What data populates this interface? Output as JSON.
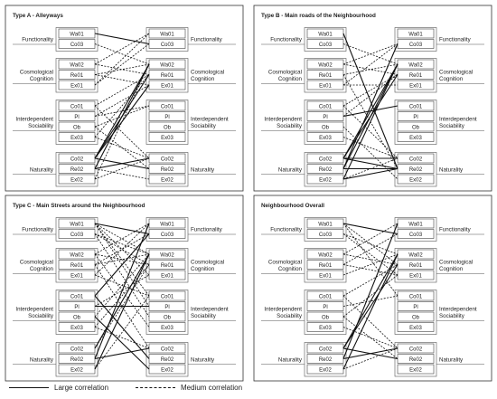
{
  "panels": [
    {
      "title": "Type A - Alleyways"
    },
    {
      "title": "Type B - Main roads of the Neighbourhood"
    },
    {
      "title": "Type C - Main Streets around the Neighbourhood"
    },
    {
      "title": "Neighbourhood Overall"
    }
  ],
  "groups": [
    {
      "label": [
        "Functionality"
      ],
      "items": [
        "Wa01",
        "Co03"
      ]
    },
    {
      "label": [
        "Cosmological",
        "Cognition"
      ],
      "items": [
        "Wa02",
        "Re01",
        "Ex01"
      ]
    },
    {
      "label": [
        "Interdependent",
        "Sociability"
      ],
      "items": [
        "Co01",
        "Pl",
        "Ob",
        "Ex03"
      ]
    },
    {
      "label": [
        "Naturality"
      ],
      "items": [
        "Co02",
        "Re02",
        "Ex02"
      ]
    }
  ],
  "links": [
    [
      [
        "Wa01",
        "Co03",
        "L"
      ],
      [
        "Co03",
        "Wa02",
        "M"
      ],
      [
        "Wa02",
        "Wa01",
        "M"
      ],
      [
        "Wa02",
        "Re01",
        "M"
      ],
      [
        "Re01",
        "Wa02",
        "M"
      ],
      [
        "Ex01",
        "Wa01",
        "M"
      ],
      [
        "Ex01",
        "Co03",
        "M"
      ],
      [
        "Re01",
        "Ex01",
        "M"
      ],
      [
        "Co01",
        "Co02",
        "M"
      ],
      [
        "Co01",
        "Re01",
        "M"
      ],
      [
        "Pl",
        "Ex01",
        "M"
      ],
      [
        "Pl",
        "Co01",
        "M"
      ],
      [
        "Ob",
        "Re02",
        "M"
      ],
      [
        "Ob",
        "Co01",
        "M"
      ],
      [
        "Ex03",
        "Re01",
        "M"
      ],
      [
        "Ex03",
        "Co02",
        "M"
      ],
      [
        "Co02",
        "Wa02",
        "L"
      ],
      [
        "Co02",
        "Re01",
        "L"
      ],
      [
        "Co02",
        "Ex01",
        "L"
      ],
      [
        "Co02",
        "Re02",
        "L"
      ],
      [
        "Re02",
        "Wa02",
        "L"
      ],
      [
        "Re02",
        "Co02",
        "L"
      ],
      [
        "Re02",
        "Ex02",
        "M"
      ],
      [
        "Ex02",
        "Wa02",
        "M"
      ],
      [
        "Ex02",
        "Co02",
        "M"
      ]
    ],
    [
      [
        "Wa01",
        "Re02",
        "L"
      ],
      [
        "Co03",
        "Wa02",
        "M"
      ],
      [
        "Wa02",
        "Re01",
        "M"
      ],
      [
        "Wa02",
        "Co03",
        "M"
      ],
      [
        "Re01",
        "Wa02",
        "M"
      ],
      [
        "Re01",
        "Re02",
        "M"
      ],
      [
        "Ex01",
        "Co03",
        "M"
      ],
      [
        "Ex01",
        "Ex01",
        "M"
      ],
      [
        "Co01",
        "Re01",
        "M"
      ],
      [
        "Co01",
        "Co02",
        "M"
      ],
      [
        "Pl",
        "Co01",
        "L"
      ],
      [
        "Pl",
        "Re01",
        "M"
      ],
      [
        "Ob",
        "Ex02",
        "M"
      ],
      [
        "Ex03",
        "Co02",
        "M"
      ],
      [
        "Co02",
        "Wa02",
        "L"
      ],
      [
        "Co02",
        "Re01",
        "L"
      ],
      [
        "Co02",
        "Co02",
        "L"
      ],
      [
        "Co02",
        "Re02",
        "L"
      ],
      [
        "Re02",
        "Wa02",
        "L"
      ],
      [
        "Re02",
        "Co03",
        "L"
      ],
      [
        "Re02",
        "Re02",
        "L"
      ],
      [
        "Ex02",
        "Wa02",
        "L"
      ],
      [
        "Ex02",
        "Re02",
        "L"
      ],
      [
        "Ex02",
        "Co02",
        "M"
      ]
    ],
    [
      [
        "Wa01",
        "Co03",
        "L"
      ],
      [
        "Wa01",
        "Wa02",
        "M"
      ],
      [
        "Wa01",
        "Ex01",
        "M"
      ],
      [
        "Wa01",
        "Pl",
        "M"
      ],
      [
        "Wa01",
        "Co01",
        "M"
      ],
      [
        "Co03",
        "Wa02",
        "M"
      ],
      [
        "Co03",
        "Re01",
        "M"
      ],
      [
        "Co03",
        "Ob",
        "M"
      ],
      [
        "Wa02",
        "Wa01",
        "M"
      ],
      [
        "Wa02",
        "Re01",
        "M"
      ],
      [
        "Wa02",
        "Ex03",
        "M"
      ],
      [
        "Re01",
        "Co03",
        "M"
      ],
      [
        "Re01",
        "Wa02",
        "M"
      ],
      [
        "Re01",
        "Co02",
        "M"
      ],
      [
        "Ex01",
        "Wa01",
        "M"
      ],
      [
        "Ex01",
        "Co01",
        "M"
      ],
      [
        "Co01",
        "Co03",
        "L"
      ],
      [
        "Co01",
        "Re02",
        "L"
      ],
      [
        "Pl",
        "Ex01",
        "M"
      ],
      [
        "Pl",
        "Pl",
        "L"
      ],
      [
        "Ob",
        "Wa02",
        "M"
      ],
      [
        "Ob",
        "Ex02",
        "L"
      ],
      [
        "Ex03",
        "Re01",
        "M"
      ],
      [
        "Ex03",
        "Co02",
        "M"
      ],
      [
        "Co02",
        "Wa02",
        "L"
      ],
      [
        "Co02",
        "Re01",
        "M"
      ],
      [
        "Re02",
        "Wa01",
        "L"
      ],
      [
        "Re02",
        "Co02",
        "L"
      ],
      [
        "Ex02",
        "Wa02",
        "L"
      ],
      [
        "Ex02",
        "Co01",
        "M"
      ]
    ],
    [
      [
        "Wa01",
        "Co03",
        "L"
      ],
      [
        "Wa01",
        "Re01",
        "M"
      ],
      [
        "Wa01",
        "Co01",
        "M"
      ],
      [
        "Co03",
        "Wa02",
        "M"
      ],
      [
        "Co03",
        "Ex01",
        "M"
      ],
      [
        "Wa02",
        "Re01",
        "M"
      ],
      [
        "Wa02",
        "Wa01",
        "M"
      ],
      [
        "Re01",
        "Ex01",
        "M"
      ],
      [
        "Re01",
        "Co03",
        "M"
      ],
      [
        "Ex01",
        "Wa02",
        "M"
      ],
      [
        "Co01",
        "Co02",
        "M"
      ],
      [
        "Co01",
        "Re01",
        "M"
      ],
      [
        "Pl",
        "Co01",
        "M"
      ],
      [
        "Ob",
        "Re02",
        "M"
      ],
      [
        "Ob",
        "Ex01",
        "M"
      ],
      [
        "Ex03",
        "Co02",
        "M"
      ],
      [
        "Co02",
        "Wa02",
        "L"
      ],
      [
        "Co02",
        "Re01",
        "L"
      ],
      [
        "Co02",
        "Re02",
        "L"
      ],
      [
        "Re02",
        "Wa01",
        "L"
      ],
      [
        "Re02",
        "Co02",
        "L"
      ],
      [
        "Ex02",
        "Wa02",
        "L"
      ],
      [
        "Ex02",
        "Co02",
        "M"
      ]
    ]
  ],
  "legend": {
    "large": "Large correlation",
    "medium": "Medium correlation"
  }
}
